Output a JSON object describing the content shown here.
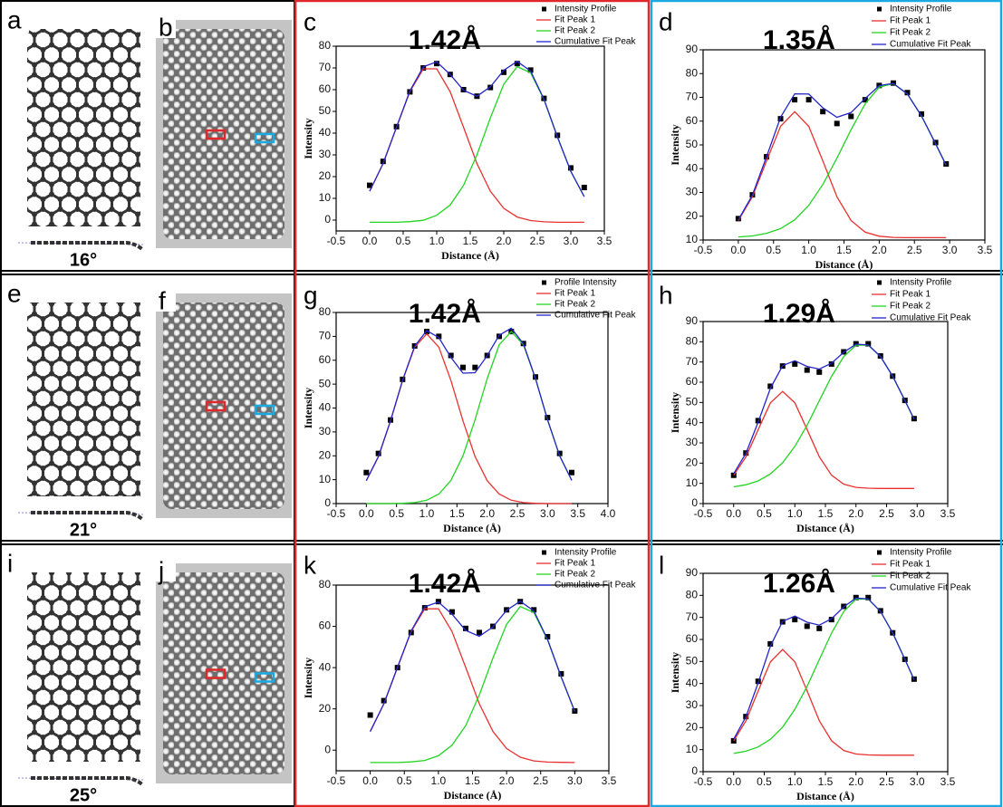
{
  "rows": [
    {
      "model_label": "a",
      "angle": "16°",
      "image_label": "b"
    },
    {
      "model_label": "e",
      "angle": "21°",
      "image_label": "f"
    },
    {
      "model_label": "i",
      "angle": "25°",
      "image_label": "j"
    }
  ],
  "chart_data": [
    {
      "type": "line",
      "panel_label": "c",
      "title": "1.42Å",
      "x_label": "Distance (Å)",
      "y_label": "Intensity",
      "legend": "upper right",
      "xlim": [
        -0.5,
        3.5
      ],
      "ylim": [
        -5,
        80
      ],
      "xticks": [
        -0.5,
        {
          "value": 0,
          "label": "0.0"
        },
        0.5,
        {
          "value": 1,
          "label": "1.0"
        },
        1.5,
        {
          "value": 2,
          "label": "2.0"
        },
        2.5,
        {
          "value": 3,
          "label": "3.0"
        },
        3.5
      ],
      "yticks": [
        0,
        10,
        20,
        30,
        40,
        50,
        60,
        70,
        80
      ],
      "x": [
        0,
        0.2,
        0.4,
        0.6,
        0.8,
        1.0,
        1.2,
        1.4,
        1.6,
        1.8,
        2.0,
        2.2,
        2.4,
        2.6,
        2.8,
        3.0,
        3.2
      ],
      "series": [
        {
          "name": "Intensity Profile",
          "style": "markers",
          "color": "#000000",
          "values": [
            16,
            27,
            43,
            59,
            70,
            72,
            67,
            60,
            57,
            61,
            68,
            72,
            69,
            56,
            39,
            24,
            15
          ]
        },
        {
          "name": "Fit Peak 1",
          "style": "line",
          "color": "#e8312f",
          "values": [
            13.3,
            26.0,
            42.7,
            59.1,
            69.6,
            69.6,
            59.1,
            42.7,
            26.0,
            13.3,
            5.4,
            1.4,
            -0.2,
            -0.8,
            -1,
            -1,
            -1
          ]
        },
        {
          "name": "Fit Peak 2",
          "style": "line",
          "color": "#22d422",
          "values": [
            -1,
            -1,
            -1,
            -0.7,
            -0.1,
            2.2,
            6.9,
            16.0,
            30.0,
            47.0,
            62.5,
            70.6,
            67.8,
            55.4,
            38.3,
            22.4,
            10.8
          ]
        },
        {
          "name": "Cumulative Fit Peak",
          "style": "line",
          "color": "#2424c8",
          "values": [
            13.3,
            26.0,
            42.7,
            59.4,
            70.5,
            72.8,
            67.0,
            59.7,
            57.0,
            61.3,
            68.9,
            73.0,
            68.6,
            55.6,
            38.3,
            22.4,
            10.8
          ]
        }
      ]
    },
    {
      "type": "line",
      "panel_label": "d",
      "title": "1.35Å",
      "x_label": "Distance (Å)",
      "y_label": "Intensity",
      "legend": "upper right",
      "xlim": [
        -0.5,
        3.5
      ],
      "ylim": [
        10,
        90
      ],
      "xticks": [
        -0.5,
        {
          "value": 0,
          "label": "0.0"
        },
        0.5,
        {
          "value": 1,
          "label": "1.0"
        },
        1.5,
        {
          "value": 2,
          "label": "2.0"
        },
        2.5,
        {
          "value": 3,
          "label": "3.0"
        },
        3.5
      ],
      "yticks": [
        10,
        20,
        30,
        40,
        50,
        60,
        70,
        80,
        90
      ],
      "x": [
        0,
        0.2,
        0.4,
        0.6,
        0.8,
        1.0,
        1.2,
        1.4,
        1.6,
        1.8,
        2.0,
        2.2,
        2.4,
        2.6,
        2.8,
        2.95
      ],
      "series": [
        {
          "name": "Intensity Profile",
          "style": "markers",
          "color": "#000000",
          "values": [
            19,
            29,
            45,
            61,
            69,
            69,
            64,
            59,
            62,
            69,
            75,
            76,
            72,
            63,
            51,
            42
          ]
        },
        {
          "name": "Fit Peak 1",
          "style": "line",
          "color": "#e8312f",
          "values": [
            18.2,
            28.2,
            43.2,
            57.8,
            64,
            57.8,
            43.2,
            28.2,
            18.2,
            13.3,
            11.6,
            11.1,
            11,
            11,
            11,
            11
          ]
        },
        {
          "name": "Fit Peak 2",
          "style": "line",
          "color": "#22d422",
          "values": [
            11.3,
            11.7,
            12.8,
            14.8,
            18.5,
            24.6,
            33.4,
            44.4,
            56.4,
            67.2,
            74.3,
            75.8,
            71.4,
            62.2,
            50.5,
            41.5
          ]
        },
        {
          "name": "Cumulative Fit Peak",
          "style": "line",
          "color": "#2424c8",
          "values": [
            18.5,
            28.9,
            45.0,
            61.6,
            71.5,
            71.4,
            65.6,
            61.6,
            63.6,
            69.5,
            74.9,
            75.9,
            71.4,
            62.2,
            50.5,
            41.5
          ]
        }
      ]
    },
    {
      "type": "line",
      "panel_label": "g",
      "title": "1.42Å",
      "x_label": "Distance (Å)",
      "y_label": "Intensity",
      "legend": "upper right",
      "xlim": [
        -0.5,
        4.0
      ],
      "ylim": [
        0,
        80
      ],
      "xticks": [
        -0.5,
        {
          "value": 0,
          "label": "0.0"
        },
        0.5,
        {
          "value": 1,
          "label": "1.0"
        },
        1.5,
        {
          "value": 2,
          "label": "2.0"
        },
        2.5,
        {
          "value": 3,
          "label": "3.0"
        },
        3.5,
        {
          "value": 4,
          "label": "4.0"
        }
      ],
      "yticks": [
        0,
        10,
        20,
        30,
        40,
        50,
        60,
        70,
        80
      ],
      "x": [
        0,
        0.2,
        0.4,
        0.6,
        0.8,
        1.0,
        1.2,
        1.4,
        1.6,
        1.8,
        2.0,
        2.2,
        2.4,
        2.6,
        2.8,
        3.0,
        3.2,
        3.4
      ],
      "series": [
        {
          "name": "Profile Intensity",
          "style": "markers",
          "color": "#000000",
          "values": [
            13,
            21,
            35,
            52,
            66,
            72,
            70,
            62,
            57,
            57,
            62,
            70,
            72,
            67,
            53,
            36,
            21,
            13
          ]
        },
        {
          "name": "Fit Peak 1",
          "style": "line",
          "color": "#e8312f",
          "values": [
            9.6,
            19.7,
            34.6,
            51.5,
            65.5,
            71,
            65.5,
            51.5,
            34.6,
            19.7,
            9.6,
            4.0,
            1.4,
            0.4,
            0.1,
            0,
            0,
            0
          ]
        },
        {
          "name": "Fit Peak 2",
          "style": "line",
          "color": "#22d422",
          "values": [
            0,
            0,
            0,
            0.1,
            0.4,
            1.4,
            4.0,
            9.7,
            20.0,
            35.1,
            52.3,
            66.5,
            72,
            66.5,
            52.3,
            35.1,
            20.0,
            9.7
          ]
        },
        {
          "name": "Cumulative Fit Peak",
          "style": "line",
          "color": "#2424c8",
          "values": [
            9.6,
            19.7,
            34.6,
            51.6,
            65.9,
            72.4,
            69.5,
            61.2,
            54.6,
            54.8,
            61.9,
            70.5,
            73.4,
            66.9,
            52.4,
            35.1,
            20.0,
            9.7
          ]
        }
      ]
    },
    {
      "type": "line",
      "panel_label": "h",
      "title": "1.29Å",
      "x_label": "Distance (Å)",
      "y_label": "Intensity",
      "legend": "upper right",
      "xlim": [
        -0.5,
        3.5
      ],
      "ylim": [
        0,
        90
      ],
      "xticks": [
        -0.5,
        {
          "value": 0,
          "label": "0.0"
        },
        0.5,
        {
          "value": 1,
          "label": "1.0"
        },
        1.5,
        {
          "value": 2,
          "label": "2.0"
        },
        2.5,
        {
          "value": 3,
          "label": "3.0"
        },
        3.5
      ],
      "yticks": [
        0,
        10,
        20,
        30,
        40,
        50,
        60,
        70,
        80,
        90
      ],
      "x": [
        0,
        0.2,
        0.4,
        0.6,
        0.8,
        1.0,
        1.2,
        1.4,
        1.6,
        1.8,
        2.0,
        2.2,
        2.4,
        2.6,
        2.8,
        2.95
      ],
      "series": [
        {
          "name": "Intensity Profile",
          "style": "markers",
          "color": "#000000",
          "values": [
            14,
            25,
            41,
            58,
            68,
            69,
            66,
            65,
            69,
            75,
            79,
            79,
            73,
            63,
            51,
            42
          ]
        },
        {
          "name": "Fit Peak 1",
          "style": "line",
          "color": "#e8312f",
          "values": [
            14.0,
            23.1,
            36.6,
            49.8,
            55.5,
            49.8,
            36.6,
            23.1,
            14.0,
            9.6,
            8.0,
            7.6,
            7.5,
            7.5,
            7.5,
            7.5
          ]
        },
        {
          "name": "Fit Peak 2",
          "style": "line",
          "color": "#22d422",
          "values": [
            8.3,
            9.3,
            11.2,
            14.7,
            20.2,
            28.3,
            38.7,
            50.9,
            62.9,
            72.7,
            78.3,
            78.3,
            72.7,
            62.9,
            50.9,
            41.7
          ]
        },
        {
          "name": "Cumulative Fit Peak",
          "style": "line",
          "color": "#2424c8",
          "values": [
            14.8,
            24.9,
            40.3,
            57.0,
            68.2,
            70.6,
            67.8,
            66.5,
            69.4,
            74.8,
            78.8,
            78.4,
            72.7,
            62.9,
            50.9,
            41.7
          ]
        }
      ]
    },
    {
      "type": "line",
      "panel_label": "k",
      "title": "1.42Å",
      "x_label": "Distance (Å)",
      "y_label": "Intensity",
      "legend": "upper right",
      "xlim": [
        -0.5,
        3.5
      ],
      "ylim": [
        -10,
        80
      ],
      "xticks": [
        -0.5,
        {
          "value": 0,
          "label": "0.0"
        },
        0.5,
        {
          "value": 1,
          "label": "1.0"
        },
        1.5,
        {
          "value": 2,
          "label": "2.0"
        },
        2.5,
        {
          "value": 3,
          "label": "3.0"
        },
        3.5
      ],
      "yticks": [
        0,
        20,
        40,
        60,
        80
      ],
      "x": [
        0,
        0.2,
        0.4,
        0.6,
        0.8,
        1.0,
        1.2,
        1.4,
        1.6,
        1.8,
        2.0,
        2.2,
        2.4,
        2.6,
        2.8,
        3.0
      ],
      "series": [
        {
          "name": "Intensity Profile",
          "style": "markers",
          "color": "#000000",
          "values": [
            17,
            24,
            40,
            57,
            69,
            72,
            67,
            59,
            57,
            60,
            68,
            72,
            68,
            55,
            37,
            19
          ]
        },
        {
          "name": "Fit Peak 1",
          "style": "line",
          "color": "#e8312f",
          "values": [
            9.0,
            22.5,
            40.1,
            57.5,
            68.5,
            68.5,
            57.5,
            40.1,
            22.5,
            9.0,
            0.8,
            -3.4,
            -5.2,
            -5.8,
            -5.9,
            -6
          ]
        },
        {
          "name": "Fit Peak 2",
          "style": "line",
          "color": "#22d422",
          "values": [
            -6,
            -6,
            -6,
            -5.7,
            -5.0,
            -2.7,
            2.4,
            11.9,
            26.7,
            44.7,
            61.0,
            69.6,
            66.7,
            53.5,
            35.5,
            18.7
          ]
        },
        {
          "name": "Cumulative Fit Peak",
          "style": "line",
          "color": "#2424c8",
          "values": [
            9.0,
            22.5,
            40.1,
            57.8,
            69.5,
            71.8,
            65.9,
            58.0,
            55.2,
            59.7,
            67.8,
            72.2,
            67.5,
            53.7,
            35.6,
            18.7
          ]
        }
      ]
    },
    {
      "type": "line",
      "panel_label": "l",
      "title": "1.26Å",
      "x_label": "Distance (Å)",
      "y_label": "Intensity",
      "legend": "upper right",
      "xlim": [
        -0.5,
        3.5
      ],
      "ylim": [
        0,
        90
      ],
      "xticks": [
        -0.5,
        {
          "value": 0,
          "label": "0.0"
        },
        0.5,
        {
          "value": 1,
          "label": "1.0"
        },
        1.5,
        {
          "value": 2,
          "label": "2.0"
        },
        2.5,
        {
          "value": 3,
          "label": "3.0"
        },
        3.5
      ],
      "yticks": [
        0,
        10,
        20,
        30,
        40,
        50,
        60,
        70,
        80,
        90
      ],
      "x": [
        0,
        0.2,
        0.4,
        0.6,
        0.8,
        1.0,
        1.2,
        1.4,
        1.6,
        1.8,
        2.0,
        2.2,
        2.4,
        2.6,
        2.8,
        2.95
      ],
      "series": [
        {
          "name": "Intensity Profile",
          "style": "markers",
          "color": "#000000",
          "values": [
            14,
            25,
            41,
            58,
            68,
            69,
            66,
            65,
            69,
            75,
            79,
            79,
            73,
            63,
            51,
            42
          ]
        },
        {
          "name": "Fit Peak 1",
          "style": "line",
          "color": "#e8312f",
          "values": [
            14.0,
            23.1,
            36.6,
            49.8,
            55.5,
            49.8,
            36.6,
            23.1,
            14.0,
            9.6,
            8.0,
            7.6,
            7.5,
            7.5,
            7.5,
            7.5
          ]
        },
        {
          "name": "Fit Peak 2",
          "style": "line",
          "color": "#22d422",
          "values": [
            8.3,
            9.3,
            11.2,
            14.7,
            20.2,
            28.3,
            38.7,
            50.9,
            62.9,
            72.7,
            78.3,
            78.3,
            72.7,
            62.9,
            50.9,
            41.7
          ]
        },
        {
          "name": "Cumulative Fit Peak",
          "style": "line",
          "color": "#2424c8",
          "values": [
            14.8,
            24.9,
            40.3,
            57.0,
            68.2,
            70.6,
            67.8,
            66.5,
            69.4,
            74.8,
            78.8,
            78.4,
            72.7,
            62.9,
            50.9,
            41.7
          ]
        }
      ]
    }
  ]
}
